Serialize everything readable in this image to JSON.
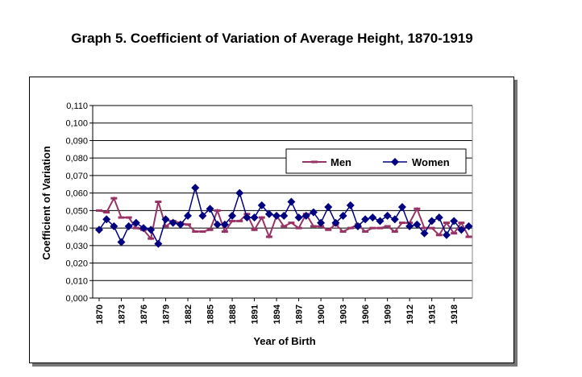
{
  "chart_data": {
    "type": "line",
    "title": "Graph 5. Coefficient of Variation of Average Height, 1870-1919",
    "xlabel": "Year of Birth",
    "ylabel": "Coefficient of Variation",
    "ylim": [
      0,
      0.11
    ],
    "yticks": [
      "0,000",
      "0,010",
      "0,020",
      "0,030",
      "0,040",
      "0,050",
      "0,060",
      "0,070",
      "0,080",
      "0,090",
      "0,100",
      "0,110"
    ],
    "xticks": [
      "1870",
      "1873",
      "1876",
      "1879",
      "1882",
      "1885",
      "1888",
      "1891",
      "1894",
      "1897",
      "1900",
      "1903",
      "1906",
      "1909",
      "1912",
      "1915",
      "1918"
    ],
    "x_start": 1870,
    "grid": true,
    "legend_position": "top-right",
    "series": [
      {
        "name": "Men",
        "color": "#993366",
        "values": [
          0.05,
          0.049,
          0.057,
          0.046,
          0.046,
          0.04,
          0.039,
          0.034,
          0.055,
          0.041,
          0.044,
          0.043,
          0.042,
          0.038,
          0.038,
          0.039,
          0.05,
          0.038,
          0.044,
          0.044,
          0.048,
          0.039,
          0.046,
          0.035,
          0.047,
          0.041,
          0.043,
          0.04,
          0.048,
          0.041,
          0.041,
          0.039,
          0.042,
          0.038,
          0.04,
          0.042,
          0.038,
          0.04,
          0.04,
          0.041,
          0.038,
          0.043,
          0.043,
          0.051,
          0.04,
          0.04,
          0.036,
          0.043,
          0.037,
          0.043,
          0.035
        ]
      },
      {
        "name": "Women",
        "color": "#000080",
        "values": [
          0.039,
          0.045,
          0.041,
          0.032,
          0.041,
          0.043,
          0.04,
          0.039,
          0.031,
          0.045,
          0.043,
          0.042,
          0.047,
          0.063,
          0.047,
          0.051,
          0.042,
          0.042,
          0.047,
          0.06,
          0.046,
          0.046,
          0.053,
          0.048,
          0.047,
          0.047,
          0.055,
          0.046,
          0.047,
          0.049,
          0.043,
          0.052,
          0.043,
          0.047,
          0.053,
          0.041,
          0.045,
          0.046,
          0.044,
          0.047,
          0.045,
          0.052,
          0.041,
          0.042,
          0.037,
          0.044,
          0.046,
          0.036,
          0.044,
          0.039,
          0.041
        ]
      }
    ]
  }
}
